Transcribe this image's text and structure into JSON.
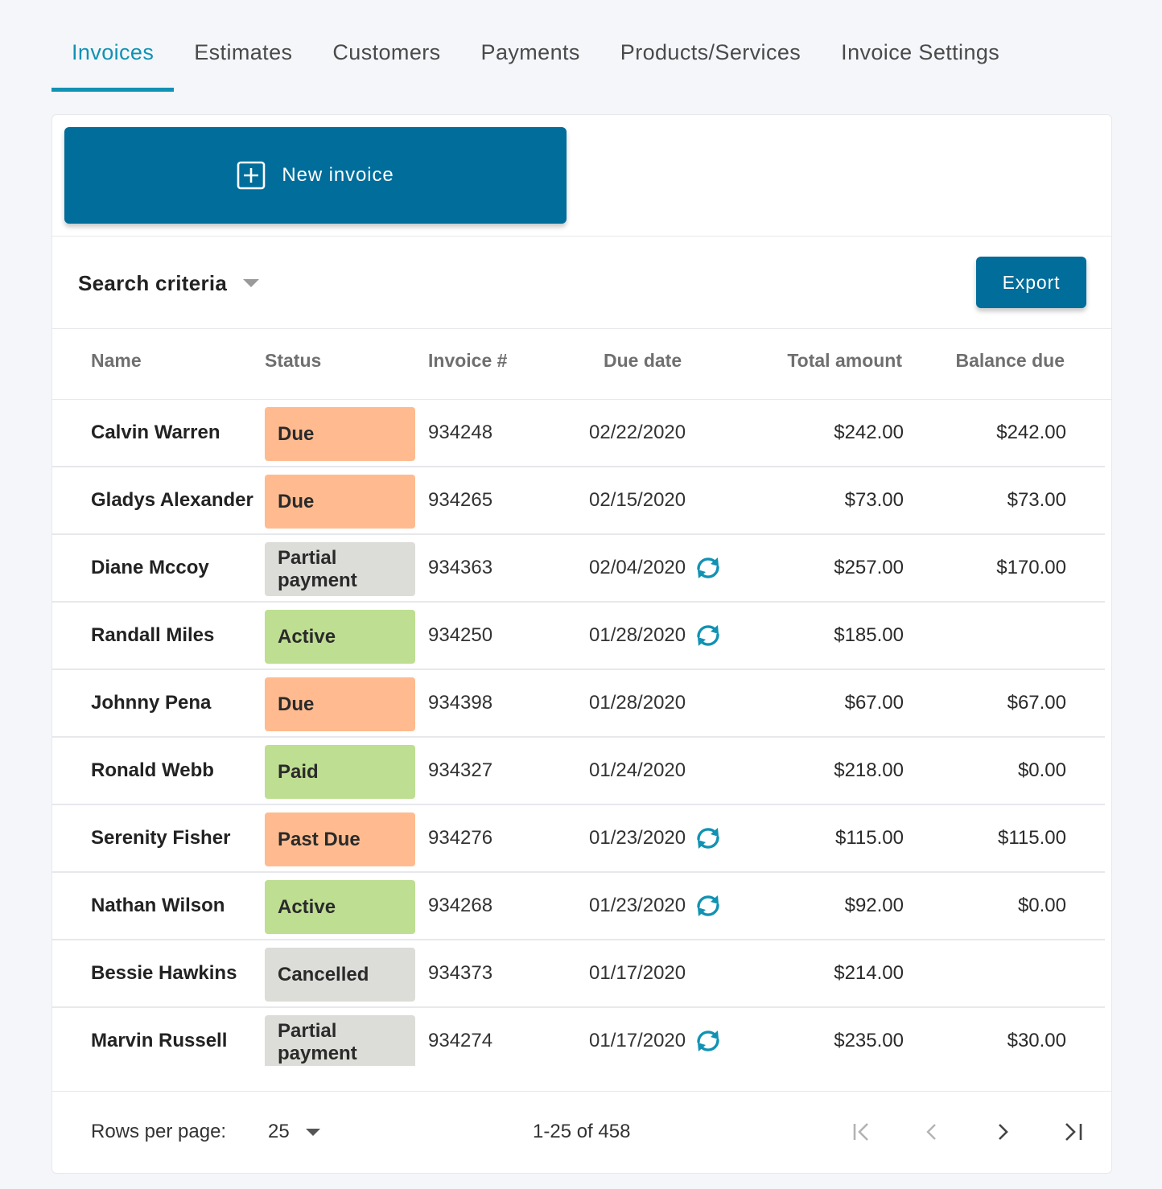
{
  "tabs": [
    {
      "label": "Invoices"
    },
    {
      "label": "Estimates"
    },
    {
      "label": "Customers"
    },
    {
      "label": "Payments"
    },
    {
      "label": "Products/Services"
    },
    {
      "label": "Invoice Settings"
    }
  ],
  "active_tab": "Invoices",
  "new_invoice_label": "New invoice",
  "search_criteria_label": "Search criteria",
  "export_label": "Export",
  "columns": {
    "name": "Name",
    "status": "Status",
    "invoice": "Invoice #",
    "due_date": "Due date",
    "total": "Total amount",
    "balance": "Balance due"
  },
  "status_colors": {
    "Due": "#ffbb8f",
    "Past Due": "#ffbb8f",
    "Partial payment": "#dcdcd8",
    "Cancelled": "#dcdcd8",
    "Active": "#bede92",
    "Paid": "#bede92"
  },
  "accent_color": "#006d9b",
  "tab_active_color": "#1192b3",
  "rows": [
    {
      "name": "Calvin Warren",
      "status": "Due",
      "invoice": "934248",
      "due_date": "02/22/2020",
      "recurring": false,
      "total": "$242.00",
      "balance": "$242.00"
    },
    {
      "name": "Gladys Alexander",
      "status": "Due",
      "invoice": "934265",
      "due_date": "02/15/2020",
      "recurring": false,
      "total": "$73.00",
      "balance": "$73.00"
    },
    {
      "name": "Diane Mccoy",
      "status": "Partial payment",
      "invoice": "934363",
      "due_date": "02/04/2020",
      "recurring": true,
      "total": "$257.00",
      "balance": "$170.00"
    },
    {
      "name": "Randall Miles",
      "status": "Active",
      "invoice": "934250",
      "due_date": "01/28/2020",
      "recurring": true,
      "total": "$185.00",
      "balance": ""
    },
    {
      "name": "Johnny Pena",
      "status": "Due",
      "invoice": "934398",
      "due_date": "01/28/2020",
      "recurring": false,
      "total": "$67.00",
      "balance": "$67.00"
    },
    {
      "name": "Ronald Webb",
      "status": "Paid",
      "invoice": "934327",
      "due_date": "01/24/2020",
      "recurring": false,
      "total": "$218.00",
      "balance": "$0.00"
    },
    {
      "name": "Serenity Fisher",
      "status": "Past Due",
      "invoice": "934276",
      "due_date": "01/23/2020",
      "recurring": true,
      "total": "$115.00",
      "balance": "$115.00"
    },
    {
      "name": "Nathan Wilson",
      "status": "Active",
      "invoice": "934268",
      "due_date": "01/23/2020",
      "recurring": true,
      "total": "$92.00",
      "balance": "$0.00"
    },
    {
      "name": "Bessie Hawkins",
      "status": "Cancelled",
      "invoice": "934373",
      "due_date": "01/17/2020",
      "recurring": false,
      "total": "$214.00",
      "balance": ""
    },
    {
      "name": "Marvin Russell",
      "status": "Partial payment",
      "invoice": "934274",
      "due_date": "01/17/2020",
      "recurring": true,
      "total": "$235.00",
      "balance": "$30.00"
    }
  ],
  "footer": {
    "rows_per_page_label": "Rows per page:",
    "rows_per_page_value": "25",
    "range_text": "1-25 of 458"
  },
  "icons": {
    "new_invoice": "plus-square-icon",
    "search_toggle": "caret-down-icon",
    "recurring": "sync-icon",
    "first_page": "first-page-icon",
    "prev_page": "chevron-left-icon",
    "next_page": "chevron-right-icon",
    "last_page": "last-page-icon"
  }
}
